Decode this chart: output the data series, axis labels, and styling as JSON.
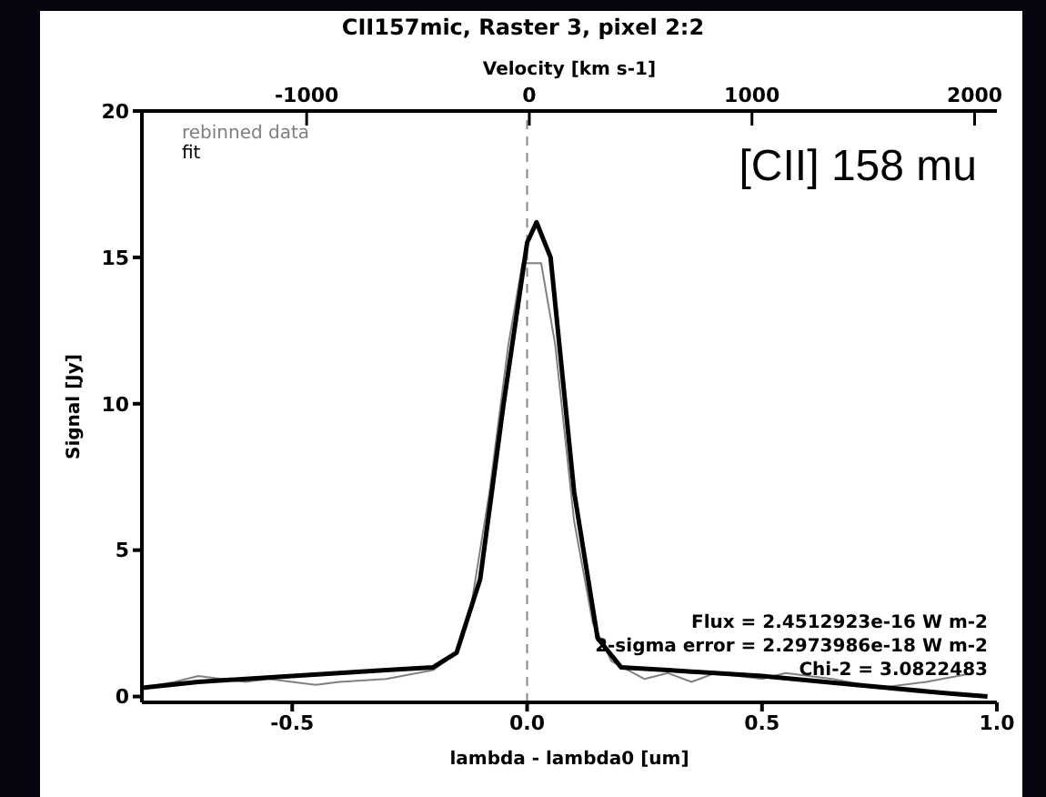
{
  "chart_data": {
    "type": "line",
    "title": "CII157mic, Raster 3, pixel 2:2",
    "xlabel": "lambda - lambda0 [um]",
    "ylabel": "Signal [Jy]",
    "x2label": "Velocity [km s-1]",
    "xlim": [
      -0.82,
      1.0
    ],
    "xticks": [
      -0.5,
      {
        "value": 0,
        "label": "0.0"
      },
      0.5,
      {
        "value": 1,
        "label": "1.0"
      }
    ],
    "x2lim": [
      -1740,
      2100
    ],
    "x2ticks": [
      -1000,
      0,
      1000,
      2000
    ],
    "ylim": [
      -0.2,
      20
    ],
    "yticks": [
      0,
      5,
      10,
      15,
      20
    ],
    "grid": false,
    "legend": "top left",
    "marker": "none",
    "ref_lines": [
      {
        "axis": "x",
        "value": 0,
        "line_style": "dashed",
        "color": "#888888"
      }
    ],
    "annotations": [
      "[CII] 158 mu",
      "Flux = 2.4512923e-16 W m-2",
      "2-sigma error = 2.2973986e-18 W m-2",
      "Chi-2 = 3.0822483"
    ],
    "series": [
      {
        "name": "rebinned data",
        "color": "#808080",
        "line_style": "solid",
        "x": [
          -0.82,
          -0.75,
          -0.7,
          -0.65,
          -0.6,
          -0.55,
          -0.5,
          -0.45,
          -0.4,
          -0.3,
          -0.2,
          -0.15,
          -0.12,
          -0.08,
          -0.04,
          -0.01,
          0.03,
          0.06,
          0.1,
          0.14,
          0.18,
          0.25,
          0.3,
          0.35,
          0.4,
          0.5,
          0.55,
          0.65,
          0.75,
          0.85,
          0.95
        ],
        "values": [
          0.3,
          0.5,
          0.7,
          0.6,
          0.5,
          0.6,
          0.5,
          0.4,
          0.5,
          0.6,
          0.9,
          1.5,
          3,
          7,
          12,
          14.8,
          14.8,
          12,
          6,
          2.5,
          1.2,
          0.6,
          0.8,
          0.5,
          0.8,
          0.6,
          0.8,
          0.6,
          0.3,
          0.5,
          0.8
        ]
      },
      {
        "name": "fit",
        "color": "#000000",
        "line_style": "solid",
        "x": [
          -0.82,
          -0.7,
          -0.5,
          -0.3,
          -0.2,
          -0.15,
          -0.1,
          -0.05,
          0,
          0.02,
          0.05,
          0.1,
          0.15,
          0.2,
          0.3,
          0.5,
          0.7,
          0.9,
          0.98
        ],
        "values": [
          0.3,
          0.5,
          0.7,
          0.9,
          1.0,
          1.5,
          4,
          10,
          15.5,
          16.2,
          15,
          7,
          2,
          1.0,
          0.9,
          0.7,
          0.4,
          0.1,
          0.0
        ]
      }
    ]
  }
}
